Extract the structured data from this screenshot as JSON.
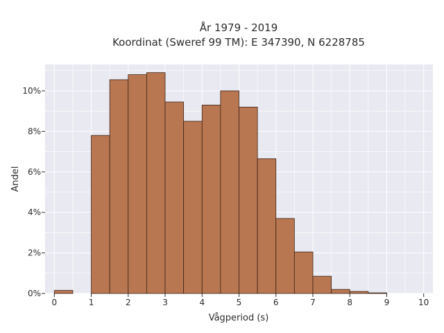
{
  "chart_data": {
    "type": "bar",
    "title": "År 1979 - 2019",
    "subtitle": "Koordinat (Sweref 99 TM): E 347390, N 6228785",
    "xlabel": "Vågperiod (s)",
    "ylabel": "Andel",
    "bin_width": 0.5,
    "bins": [
      0,
      0.5,
      1,
      1.5,
      2,
      2.5,
      3,
      3.5,
      4,
      4.5,
      5,
      5.5,
      6,
      6.5,
      7,
      7.5,
      8,
      8.5,
      9,
      9.5
    ],
    "values": [
      0.15,
      0,
      7.8,
      10.55,
      10.8,
      10.9,
      9.45,
      8.5,
      9.3,
      10.0,
      9.2,
      6.65,
      3.7,
      2.05,
      0.85,
      0.2,
      0.1,
      0.03,
      0,
      0
    ],
    "xlim": [
      -0.25,
      10.25
    ],
    "ylim": [
      0,
      11.3
    ],
    "x_ticks": [
      0,
      1,
      2,
      3,
      4,
      5,
      6,
      7,
      8,
      9,
      10
    ],
    "x_tick_labels": [
      "0",
      "1",
      "2",
      "3",
      "4",
      "5",
      "6",
      "7",
      "8",
      "9",
      "10"
    ],
    "y_ticks": [
      0,
      2,
      4,
      6,
      8,
      10
    ],
    "y_tick_labels": [
      "0%",
      "2%",
      "4%",
      "6%",
      "8%",
      "10%"
    ],
    "grid": true,
    "colors": {
      "bar_fill": "#b87651",
      "bar_stroke": "#3b2418",
      "plot_background": "#e9e9f1",
      "grid": "#ffffff"
    }
  }
}
